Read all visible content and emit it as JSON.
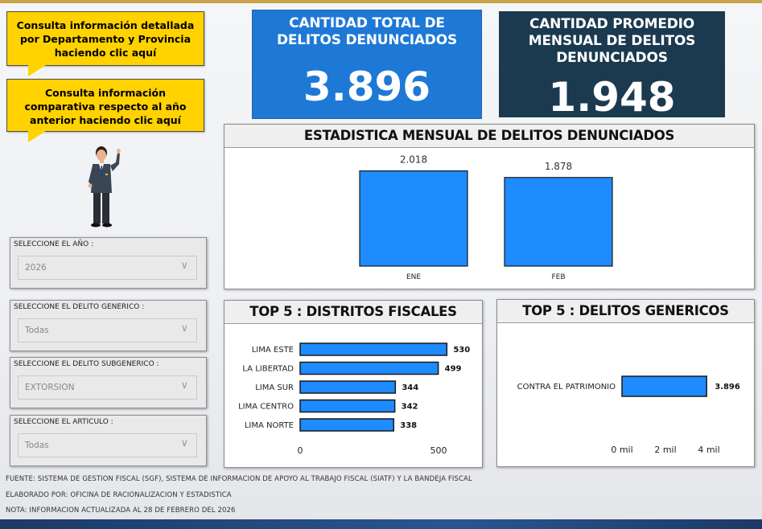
{
  "callouts": {
    "detail": "Consulta información detallada por Departamento y Provincia haciendo clic aquí",
    "compare": "Consulta información comparativa respecto al año anterior haciendo clic aquí"
  },
  "kpis": {
    "total_title": "CANTIDAD TOTAL DE DELITOS DENUNCIADOS",
    "total_value": "3.896",
    "avg_title": "CANTIDAD PROMEDIO MENSUAL DE DELITOS DENUNCIADOS",
    "avg_value": "1.948"
  },
  "filters": [
    {
      "label": "SELECCIONE EL AÑO :",
      "value": "2026"
    },
    {
      "label": "SELECCIONE EL DELITO GENERICO :",
      "value": "Todas"
    },
    {
      "label": "SELECCIONE EL DELITO SUBGENERICO :",
      "value": "EXTORSION"
    },
    {
      "label": "SELECCIONE EL ARTICULO :",
      "value": "Todas"
    }
  ],
  "panels": {
    "monthly_title": "ESTADISTICA MENSUAL DE DELITOS DENUNCIADOS",
    "districts_title": "TOP 5 : DISTRITOS FISCALES",
    "crimes_title": "TOP 5 : DELITOS GENERICOS"
  },
  "chart_data": [
    {
      "type": "bar",
      "title": "ESTADISTICA MENSUAL DE DELITOS DENUNCIADOS",
      "categories": [
        "ENE",
        "FEB"
      ],
      "values": [
        2018,
        1878
      ],
      "data_labels": [
        "2.018",
        "1.878"
      ],
      "ylim": [
        0,
        2300
      ],
      "grid": false,
      "color": "#1e8bff"
    },
    {
      "type": "bar",
      "orientation": "horizontal",
      "title": "TOP 5 : DISTRITOS FISCALES",
      "categories": [
        "LIMA ESTE",
        "LA LIBERTAD",
        "LIMA SUR",
        "LIMA CENTRO",
        "LIMA NORTE"
      ],
      "values": [
        530,
        499,
        344,
        342,
        338
      ],
      "xlim": [
        0,
        600
      ],
      "xticks": [
        "0",
        "500"
      ],
      "color": "#1e8bff"
    },
    {
      "type": "bar",
      "orientation": "horizontal",
      "title": "TOP 5 : DELITOS GENERICOS",
      "categories": [
        "CONTRA EL PATRIMONIO"
      ],
      "values": [
        3896
      ],
      "data_labels": [
        "3.896"
      ],
      "xlim": [
        0,
        5000
      ],
      "xticks": [
        "0 mil",
        "2 mil",
        "4 mil"
      ],
      "color": "#1e8bff"
    }
  ],
  "footer": {
    "source": "FUENTE: SISTEMA DE GESTION FISCAL (SGF), SISTEMA DE INFORMACION DE APOYO AL TRABAJO FISCAL (SIATF) Y LA BANDEJA FISCAL",
    "prepared": "ELABORADO POR: OFICINA DE RACIONALIZACION Y ESTADISTICA",
    "note": "NOTA: INFORMACION ACTUALIZADA AL 28 DE FEBRERO DEL 2026"
  },
  "colors": {
    "callout": "#ffd200",
    "kpi_total": "#1e78d6",
    "kpi_avg": "#1b3a4f",
    "bar": "#1e8bff"
  }
}
